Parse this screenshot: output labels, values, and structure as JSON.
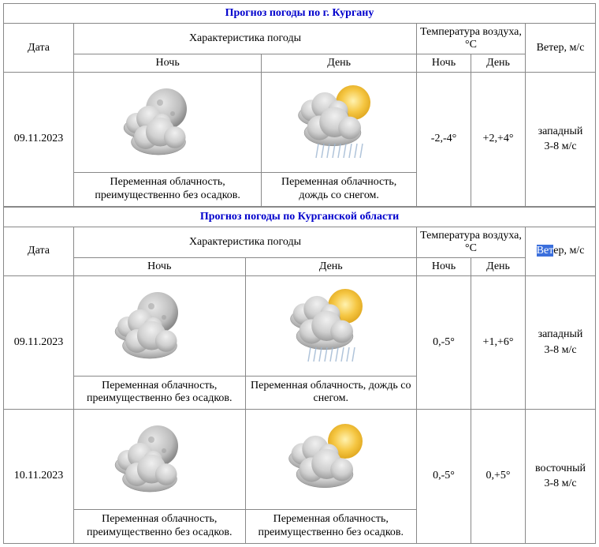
{
  "headers": {
    "date": "Дата",
    "weather": "Характеристика погоды",
    "temp": "Температура воздуха, °C",
    "wind": "Ветер, м/с",
    "night": "Ночь",
    "day": "День",
    "wind_prefix_hl": "Вет",
    "wind_suffix": "ер, м/с"
  },
  "tables": [
    {
      "caption": "Прогноз погоды по г. Кургану",
      "wind_highlight": false,
      "rows": [
        {
          "date": "09.11.2023",
          "night_desc": "Переменная облачность, преимущественно без осадков.",
          "day_desc": "Переменная облачность, дождь со снегом.",
          "night_icon": "night-cloud",
          "day_icon": "day-cloud-rain",
          "night_temp": "-2,-4°",
          "day_temp": "+2,+4°",
          "wind_dir": "западный",
          "wind_speed": "3-8 м/с"
        }
      ]
    },
    {
      "caption": "Прогноз погоды по Курганской области",
      "wind_highlight": true,
      "rows": [
        {
          "date": "09.11.2023",
          "night_desc": "Переменная облачность, преимущественно без осадков.",
          "day_desc": "Переменная облачность, дождь со снегом.",
          "night_icon": "night-cloud",
          "day_icon": "day-cloud-rain",
          "night_temp": "0,-5°",
          "day_temp": "+1,+6°",
          "wind_dir": "западный",
          "wind_speed": "3-8 м/с"
        },
        {
          "date": "10.11.2023",
          "night_desc": "Переменная облачность, преимущественно без осадков.",
          "day_desc": "Переменная облачность, преимущественно без осадков.",
          "night_icon": "night-cloud",
          "day_icon": "day-cloud",
          "night_temp": "0,-5°",
          "day_temp": "0,+5°",
          "wind_dir": "восточный",
          "wind_speed": "3-8 м/с"
        }
      ]
    }
  ],
  "colors": {
    "border": "#888888",
    "caption_text": "#0000cc",
    "highlight_bg": "#3b6fdc",
    "highlight_fg": "#ffffff",
    "bg": "#ffffff"
  },
  "icons": {
    "moon_fill": "#c9c9c9",
    "moon_dark": "#8a8a8a",
    "sun_fill": "#f5c642",
    "sun_glow": "#f8de8a",
    "cloud_light": "#d8d8d8",
    "cloud_dark": "#a8a8a8",
    "cloud_stroke": "#888888",
    "rain": "#9db6d1"
  }
}
